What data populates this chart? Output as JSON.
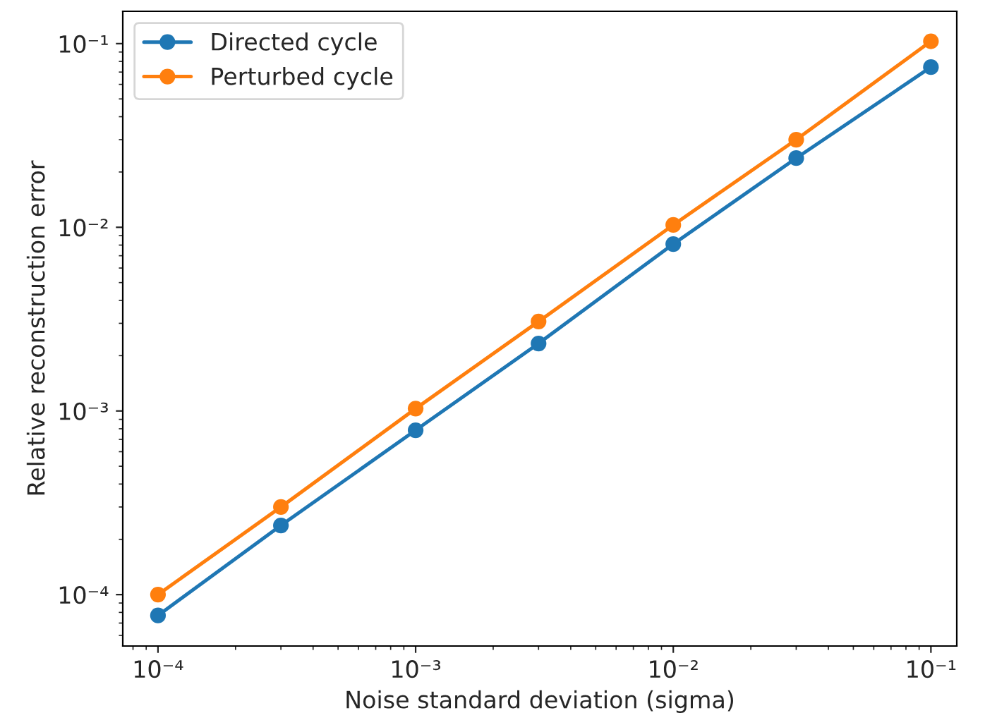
{
  "chart_data": {
    "type": "line",
    "xlabel": "Noise standard deviation (sigma)",
    "ylabel": "Relative reconstruction error",
    "x": [
      0.0001,
      0.0003,
      0.001,
      0.003,
      0.01,
      0.03,
      0.1
    ],
    "series": [
      {
        "name": "Directed cycle",
        "color": "#1f77b4",
        "values": [
          7.7e-05,
          0.000238,
          0.000785,
          0.00233,
          0.0081,
          0.0238,
          0.0745
        ]
      },
      {
        "name": "Perturbed cycle",
        "color": "#ff7f0e",
        "values": [
          0.0001,
          0.0003,
          0.00103,
          0.00307,
          0.0103,
          0.03,
          0.103
        ]
      }
    ],
    "log": "xy",
    "xlim": [
      7.3e-05,
      0.126
    ],
    "ylim": [
      5.25e-05,
      0.15
    ],
    "xticks": [
      {
        "value": 0.0001,
        "label": "10⁻⁴"
      },
      {
        "value": 0.001,
        "label": "10⁻³"
      },
      {
        "value": 0.01,
        "label": "10⁻²"
      },
      {
        "value": 0.1,
        "label": "10⁻¹"
      }
    ],
    "yticks": [
      {
        "value": 0.0001,
        "label": "10⁻⁴"
      },
      {
        "value": 0.001,
        "label": "10⁻³"
      },
      {
        "value": 0.01,
        "label": "10⁻²"
      },
      {
        "value": 0.1,
        "label": "10⁻¹"
      }
    ],
    "marker": "circle",
    "line_style": "solid",
    "grid": false,
    "legend": "top left"
  }
}
